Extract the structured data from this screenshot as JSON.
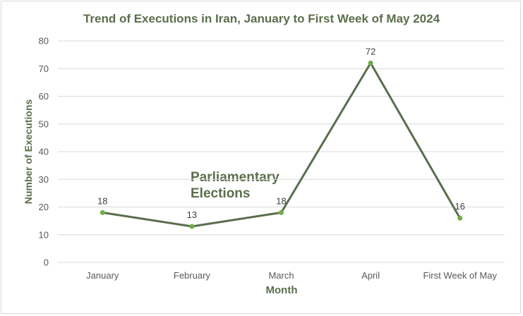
{
  "chart_data": {
    "type": "line",
    "title": "Trend of Executions in Iran, January to First Week of May 2024",
    "xlabel": "Month",
    "ylabel": "Number of Executions",
    "categories": [
      "January",
      "February",
      "March",
      "April",
      "First Week of May"
    ],
    "values": [
      18,
      13,
      18,
      72,
      16
    ],
    "ylim": [
      0,
      80
    ],
    "yticks": [
      0,
      10,
      20,
      30,
      40,
      50,
      60,
      70,
      80
    ],
    "grid": true,
    "legend": "none",
    "data_labels": true,
    "annotation": "Parliamentary Elections",
    "colors": {
      "line": "#5a6e4c",
      "marker": "#70ad47",
      "text": "#5a6e4c",
      "grid": "#d9d9d9"
    }
  }
}
